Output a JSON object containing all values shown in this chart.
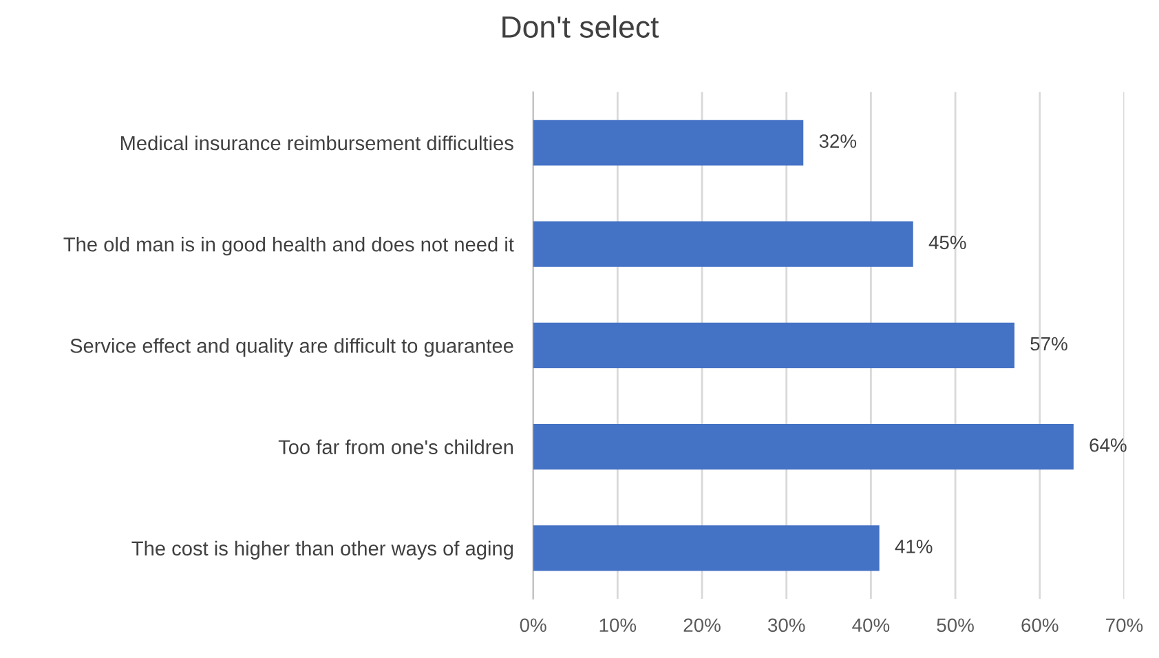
{
  "chart_data": {
    "type": "bar",
    "orientation": "horizontal",
    "title": "Don't select",
    "categories": [
      "Medical insurance reimbursement difficulties",
      "The old man is in good health and does not need it",
      "Service effect and quality are difficult to guarantee",
      "Too far from one's children",
      "The cost is higher than other ways of aging"
    ],
    "values": [
      32,
      45,
      57,
      64,
      41
    ],
    "value_labels": [
      "32%",
      "45%",
      "57%",
      "64%",
      "41%"
    ],
    "color": "#4472c4",
    "xlim": [
      0,
      70
    ],
    "xticks": [
      {
        "value": 0,
        "label": "0%"
      },
      {
        "value": 10,
        "label": "10%"
      },
      {
        "value": 20,
        "label": "20%"
      },
      {
        "value": 30,
        "label": "30%"
      },
      {
        "value": 40,
        "label": "40%"
      },
      {
        "value": 50,
        "label": "50%"
      },
      {
        "value": 60,
        "label": "60%"
      },
      {
        "value": 70,
        "label": "70%"
      }
    ],
    "grid": "x"
  }
}
